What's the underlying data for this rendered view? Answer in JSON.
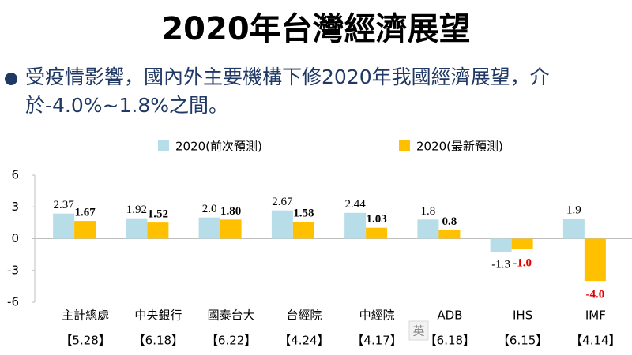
{
  "chart_data": {
    "type": "bar",
    "title": "2020年台灣經濟展望",
    "subtitle": "受疫情影響，國內外主要機構下修2020年我國經濟展望，介於-4.0%~1.8%之間。",
    "categories": [
      "主計總處",
      "中央銀行",
      "國泰台大",
      "台經院",
      "中經院",
      "ADB",
      "IHS",
      "IMF"
    ],
    "category_notes": [
      "【5.28】",
      "【6.18】",
      "【6.22】",
      "【4.24】",
      "【4.17】",
      "【6.18】",
      "【6.15】",
      "【4.14】"
    ],
    "series": [
      {
        "name": "2020(前次預測)",
        "color": "#b7dde8",
        "values": [
          2.37,
          1.92,
          2.0,
          2.67,
          2.44,
          1.8,
          -1.3,
          1.9
        ],
        "value_labels": [
          "2.37",
          "1.92",
          "2.0",
          "2.67",
          "2.44",
          "1.8",
          "-1.3",
          "1.9"
        ]
      },
      {
        "name": "2020(最新預測)",
        "color": "#ffc000",
        "values": [
          1.67,
          1.52,
          1.8,
          1.58,
          1.03,
          0.8,
          -1.0,
          -4.0
        ],
        "value_labels": [
          "1.67",
          "1.52",
          "1.80",
          "1.58",
          "1.03",
          "0.8",
          "-1.0",
          "-4.0"
        ]
      }
    ],
    "negative_label_color": "#e00000",
    "ylim": [
      -6,
      6
    ],
    "yticks": [
      6,
      3,
      0,
      -3,
      -6
    ],
    "ime_indicator": "英"
  }
}
